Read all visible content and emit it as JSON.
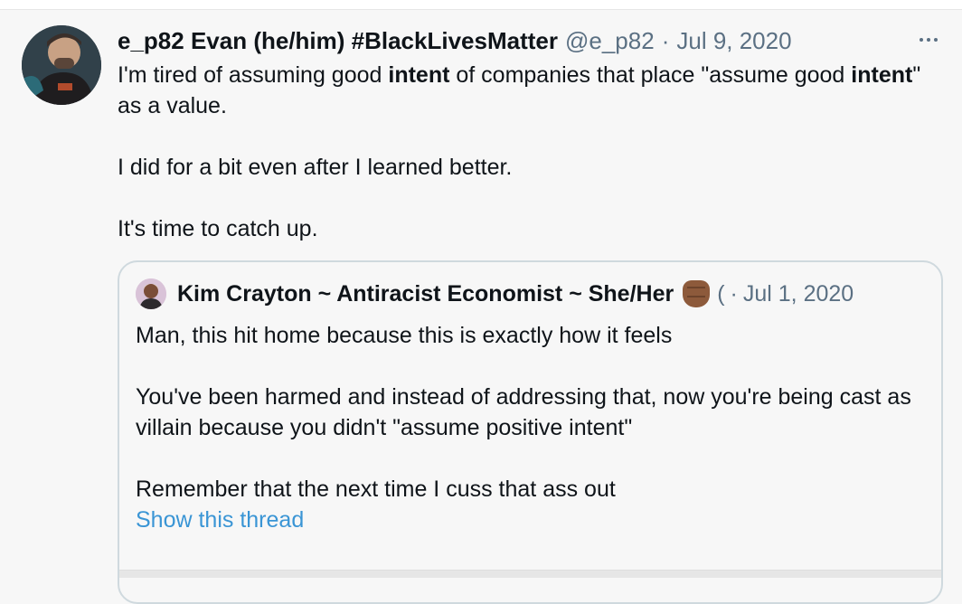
{
  "tweet": {
    "author_name": "e_p82 Evan (he/him) #BlackLivesMatter",
    "handle": "@e_p82",
    "separator": "·",
    "date": "Jul 9, 2020",
    "more_icon": "more-horizontal-icon",
    "body": {
      "line1_before": "I'm tired of assuming good ",
      "line1_bold1": "intent",
      "line1_middle": " of companies that place \"assume good ",
      "line1_bold2": "intent",
      "line1_after": "\" as a value.",
      "line2": "I did for a bit even after I learned better.",
      "line3": "It's time to catch up."
    }
  },
  "quoted": {
    "author_name": "Kim Crayton ~ Antiracist Economist ~ She/Her",
    "emoji_icon": "raised-fist-medium-dark-icon",
    "truncated": "(",
    "separator": "·",
    "date": "Jul 1, 2020",
    "body": {
      "line1": "Man, this hit home because this is exactly how it feels",
      "line2": "You've been harmed and instead of addressing that, now you're being cast as villain because you didn't \"assume positive intent\"",
      "line3": "Remember that the next time I cuss that ass out"
    },
    "show_thread": "Show this thread"
  }
}
